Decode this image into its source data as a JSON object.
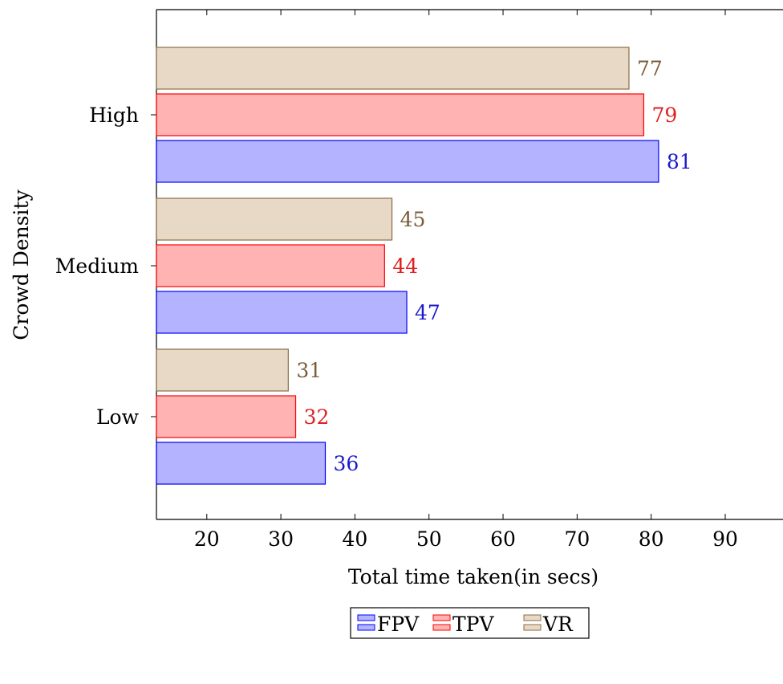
{
  "chart_data": {
    "type": "bar",
    "orientation": "horizontal",
    "categories": [
      "Low",
      "Medium",
      "High"
    ],
    "series": [
      {
        "name": "FPV",
        "values": [
          36,
          47,
          81
        ],
        "fill": "#b3b3ff",
        "stroke": "#0000ff",
        "label_color": "#1a1acc"
      },
      {
        "name": "TPV",
        "values": [
          32,
          44,
          79
        ],
        "fill": "#ffb3b3",
        "stroke": "#ff0000",
        "label_color": "#e01f1f"
      },
      {
        "name": "VR",
        "values": [
          31,
          45,
          77
        ],
        "fill": "#e8d9c6",
        "stroke": "#8b6d45",
        "label_color": "#7a5c3a"
      }
    ],
    "xlabel": "Total time taken(in secs)",
    "ylabel": "Crowd Density",
    "xticks": [
      20,
      30,
      40,
      50,
      60,
      70,
      80,
      90
    ],
    "xlim": [
      13.2,
      97.8
    ],
    "legend_position": "bottom-center",
    "grid": false,
    "data_labels": true
  }
}
